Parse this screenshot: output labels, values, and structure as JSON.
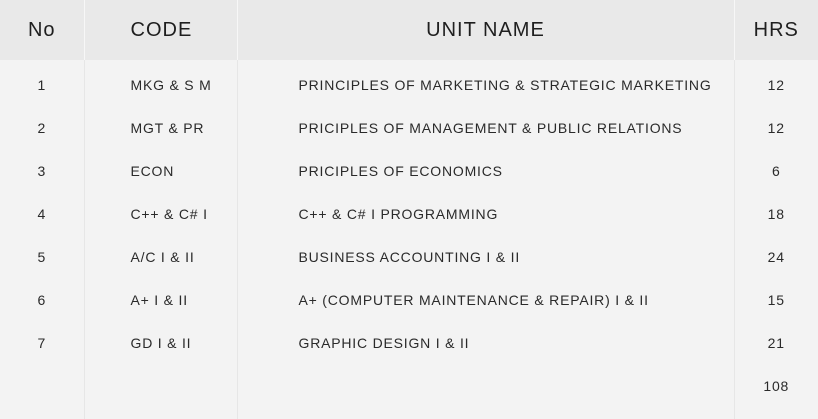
{
  "headers": {
    "no": "No",
    "code": "CODE",
    "unit": "UNIT NAME",
    "hrs": "HRS"
  },
  "rows": [
    {
      "no": "1",
      "code": "MKG & S M",
      "unit": "PRINCIPLES OF MARKETING & STRATEGIC MARKETING",
      "hrs": "12"
    },
    {
      "no": "2",
      "code": "MGT & PR",
      "unit": "PRICIPLES OF MANAGEMENT & PUBLIC RELATIONS",
      "hrs": "12"
    },
    {
      "no": "3",
      "code": "ECON",
      "unit": "PRICIPLES OF ECONOMICS",
      "hrs": "6"
    },
    {
      "no": "4",
      "code": "C++ & C# I",
      "unit": "C++ & C# I PROGRAMMING",
      "hrs": "18"
    },
    {
      "no": "5",
      "code": "A/C I & II",
      "unit": "BUSINESS ACCOUNTING I & II",
      "hrs": "24"
    },
    {
      "no": "6",
      "code": "A+ I & II",
      "unit": "A+ (COMPUTER MAINTENANCE & REPAIR) I & II",
      "hrs": "15"
    },
    {
      "no": "7",
      "code": "GD I & II",
      "unit": "GRAPHIC DESIGN I & II",
      "hrs": "21"
    }
  ],
  "total": {
    "hrs": "108"
  }
}
